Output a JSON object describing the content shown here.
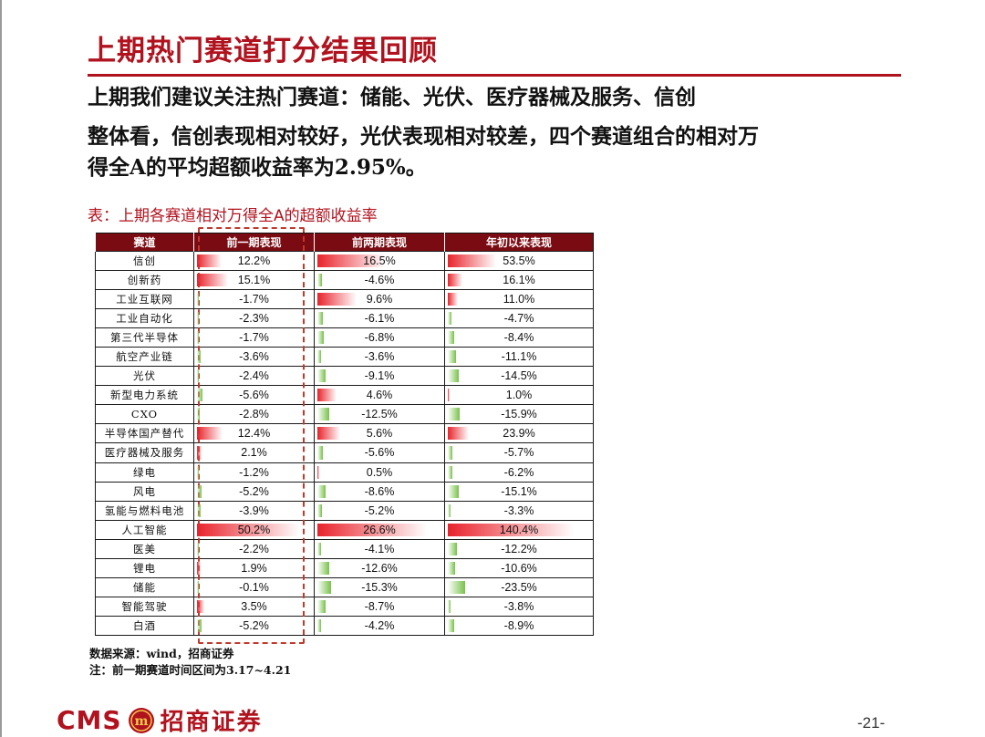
{
  "title": "上期热门赛道打分结果回顾",
  "paragraphs": {
    "line1": "上期我们建议关注热门赛道：储能、光伏、医疗器械及服务、信创",
    "line2": "整体看，信创表现相对较好，光伏表现相对较差，四个赛道组合的相对万",
    "line3": "得全A的平均超额收益率为2.95%。"
  },
  "table": {
    "caption": "表：上期各赛道相对万得全A的超额收益率",
    "headers": [
      "赛道",
      "前一期表现",
      "前两期表现",
      "年初以来表现"
    ],
    "rows": [
      {
        "name": "信创",
        "p1": "12.2%",
        "v1": 12.2,
        "p2": "16.5%",
        "v2": 16.5,
        "p3": "53.5%",
        "v3": 53.5
      },
      {
        "name": "创新药",
        "p1": "15.1%",
        "v1": 15.1,
        "p2": "-4.6%",
        "v2": -4.6,
        "p3": "16.1%",
        "v3": 16.1
      },
      {
        "name": "工业互联网",
        "p1": "-1.7%",
        "v1": -1.7,
        "p2": "9.6%",
        "v2": 9.6,
        "p3": "11.0%",
        "v3": 11.0
      },
      {
        "name": "工业自动化",
        "p1": "-2.3%",
        "v1": -2.3,
        "p2": "-6.1%",
        "v2": -6.1,
        "p3": "-4.7%",
        "v3": -4.7
      },
      {
        "name": "第三代半导体",
        "p1": "-1.7%",
        "v1": -1.7,
        "p2": "-6.8%",
        "v2": -6.8,
        "p3": "-8.4%",
        "v3": -8.4
      },
      {
        "name": "航空产业链",
        "p1": "-3.6%",
        "v1": -3.6,
        "p2": "-3.6%",
        "v2": -3.6,
        "p3": "-11.1%",
        "v3": -11.1
      },
      {
        "name": "光伏",
        "p1": "-2.4%",
        "v1": -2.4,
        "p2": "-9.1%",
        "v2": -9.1,
        "p3": "-14.5%",
        "v3": -14.5
      },
      {
        "name": "新型电力系统",
        "p1": "-5.6%",
        "v1": -5.6,
        "p2": "4.6%",
        "v2": 4.6,
        "p3": "1.0%",
        "v3": 1.0
      },
      {
        "name": "CXO",
        "p1": "-2.8%",
        "v1": -2.8,
        "p2": "-12.5%",
        "v2": -12.5,
        "p3": "-15.9%",
        "v3": -15.9
      },
      {
        "name": "半导体国产替代",
        "p1": "12.4%",
        "v1": 12.4,
        "p2": "5.6%",
        "v2": 5.6,
        "p3": "23.9%",
        "v3": 23.9
      },
      {
        "name": "医疗器械及服务",
        "p1": "2.1%",
        "v1": 2.1,
        "p2": "-5.6%",
        "v2": -5.6,
        "p3": "-5.7%",
        "v3": -5.7
      },
      {
        "name": "绿电",
        "p1": "-1.2%",
        "v1": -1.2,
        "p2": "0.5%",
        "v2": 0.5,
        "p3": "-6.2%",
        "v3": -6.2
      },
      {
        "name": "风电",
        "p1": "-5.2%",
        "v1": -5.2,
        "p2": "-8.6%",
        "v2": -8.6,
        "p3": "-15.1%",
        "v3": -15.1
      },
      {
        "name": "氢能与燃料电池",
        "p1": "-3.9%",
        "v1": -3.9,
        "p2": "-5.2%",
        "v2": -5.2,
        "p3": "-3.3%",
        "v3": -3.3
      },
      {
        "name": "人工智能",
        "p1": "50.2%",
        "v1": 50.2,
        "p2": "26.6%",
        "v2": 26.6,
        "p3": "140.4%",
        "v3": 140.4
      },
      {
        "name": "医美",
        "p1": "-2.2%",
        "v1": -2.2,
        "p2": "-4.1%",
        "v2": -4.1,
        "p3": "-12.2%",
        "v3": -12.2
      },
      {
        "name": "锂电",
        "p1": "1.9%",
        "v1": 1.9,
        "p2": "-12.6%",
        "v2": -12.6,
        "p3": "-10.6%",
        "v3": -10.6
      },
      {
        "name": "储能",
        "p1": "-0.1%",
        "v1": -0.1,
        "p2": "-15.3%",
        "v2": -15.3,
        "p3": "-23.5%",
        "v3": -23.5
      },
      {
        "name": "智能驾驶",
        "p1": "3.5%",
        "v1": 3.5,
        "p2": "-8.7%",
        "v2": -8.7,
        "p3": "-3.8%",
        "v3": -3.8
      },
      {
        "name": "白酒",
        "p1": "-5.2%",
        "v1": -5.2,
        "p2": "-4.2%",
        "v2": -4.2,
        "p3": "-8.9%",
        "v3": -8.9
      }
    ]
  },
  "source": {
    "line1": "数据来源：wind，招商证券",
    "line2": "注：前一期赛道时间区间为3.17~4.21"
  },
  "footer": {
    "logo_text": "CMS",
    "logo_seal": "m",
    "logo_cn": "招商证券",
    "page_number": "-21-"
  },
  "colors": {
    "brand_red": "#b0121e",
    "header_bg": "#7b0b12",
    "positive_bar": "#e8232b",
    "negative_bar": "#78c24a"
  }
}
